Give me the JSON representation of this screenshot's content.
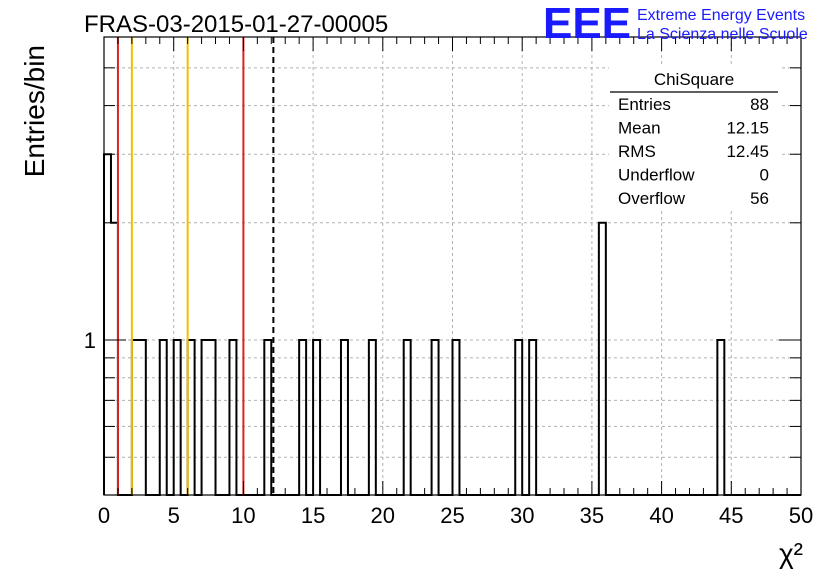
{
  "title": "FRAS-03-2015-01-27-00005",
  "logo": {
    "text": "EEE",
    "line1": "Extreme Energy Events",
    "line2": "La Scienza nelle Scuole",
    "color": "#1a1aff"
  },
  "stats": {
    "name": "ChiSquare",
    "rows": [
      {
        "label": "Entries",
        "value": "88"
      },
      {
        "label": "Mean",
        "value": "12.15"
      },
      {
        "label": "RMS",
        "value": "12.45"
      },
      {
        "label": "Underflow",
        "value": "0"
      },
      {
        "label": "Overflow",
        "value": "56"
      }
    ]
  },
  "chart_data": {
    "type": "bar",
    "title": "FRAS-03-2015-01-27-00005",
    "xlabel": "χ²",
    "ylabel": "Entries/bin",
    "xlim": [
      0,
      50
    ],
    "ylim": [
      0.4,
      6
    ],
    "yscale": "log",
    "grid": true,
    "bin_width": 0.5,
    "x_ticks": [
      0,
      5,
      10,
      15,
      20,
      25,
      30,
      35,
      40,
      45,
      50
    ],
    "y_tick_labels": [
      {
        "value": 1,
        "label": "1"
      }
    ],
    "bins": [
      {
        "x": 0.0,
        "value": 3
      },
      {
        "x": 0.5,
        "value": 2
      },
      {
        "x": 2.0,
        "value": 1
      },
      {
        "x": 2.5,
        "value": 1
      },
      {
        "x": 4.0,
        "value": 1
      },
      {
        "x": 5.0,
        "value": 1
      },
      {
        "x": 6.0,
        "value": 1
      },
      {
        "x": 7.0,
        "value": 1
      },
      {
        "x": 7.5,
        "value": 1
      },
      {
        "x": 9.0,
        "value": 1
      },
      {
        "x": 11.5,
        "value": 1
      },
      {
        "x": 14.0,
        "value": 1
      },
      {
        "x": 15.0,
        "value": 1
      },
      {
        "x": 17.0,
        "value": 1
      },
      {
        "x": 19.0,
        "value": 1
      },
      {
        "x": 21.5,
        "value": 1
      },
      {
        "x": 23.5,
        "value": 1
      },
      {
        "x": 25.0,
        "value": 1
      },
      {
        "x": 29.5,
        "value": 1
      },
      {
        "x": 30.5,
        "value": 1
      },
      {
        "x": 35.5,
        "value": 2
      },
      {
        "x": 44.0,
        "value": 1
      }
    ],
    "vertical_lines": [
      {
        "x": 1,
        "color": "#dd2222",
        "style": "solid"
      },
      {
        "x": 2,
        "color": "#f0c000",
        "style": "solid"
      },
      {
        "x": 6,
        "color": "#f0c000",
        "style": "solid"
      },
      {
        "x": 10,
        "color": "#dd2222",
        "style": "solid"
      },
      {
        "x": 12.15,
        "color": "#000000",
        "style": "dashed"
      }
    ]
  }
}
